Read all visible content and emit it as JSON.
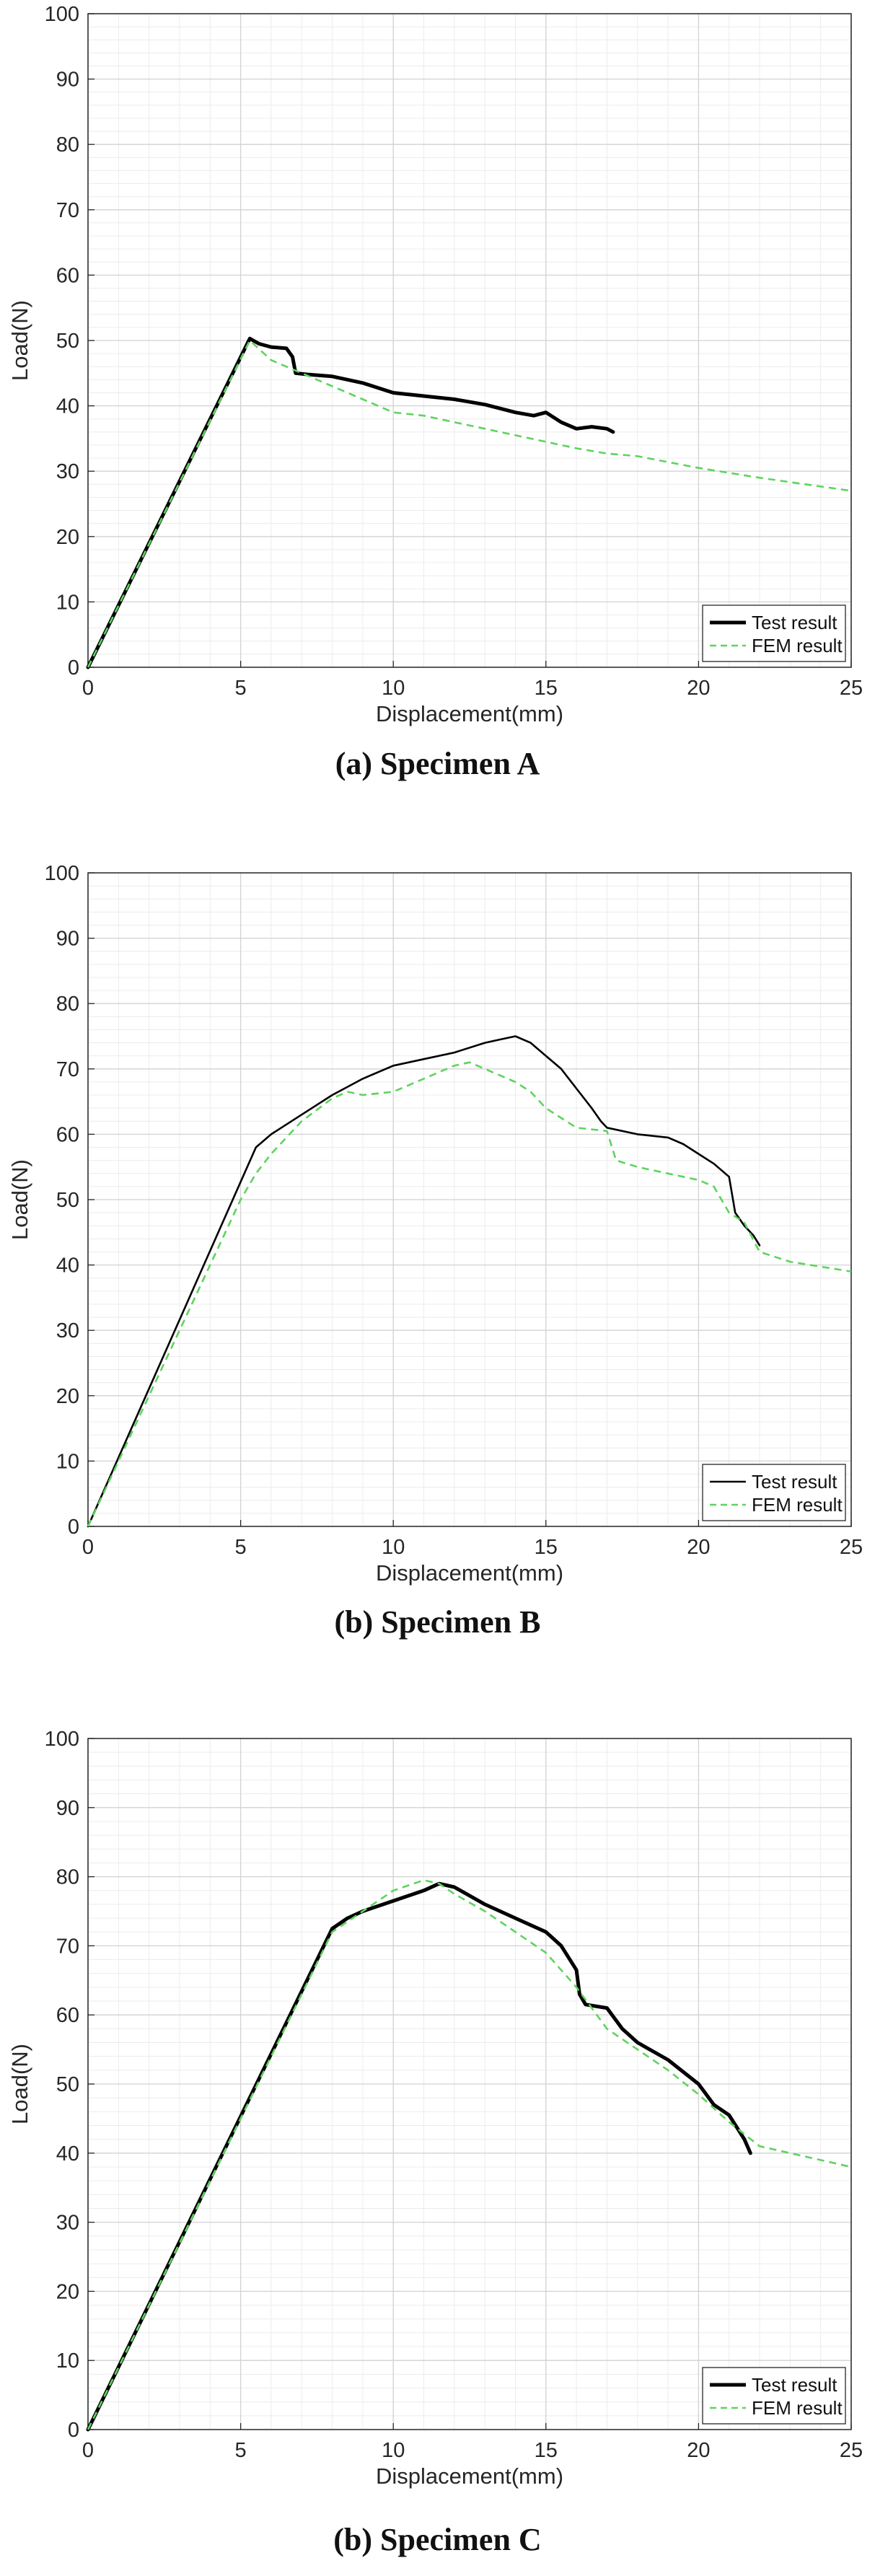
{
  "chart_data": [
    {
      "type": "line",
      "caption": "(a) Specimen A",
      "xlabel": "Displacement(mm)",
      "ylabel": "Load(N)",
      "xlim": [
        0,
        25
      ],
      "ylim": [
        0,
        100
      ],
      "xticks": [
        0,
        5,
        10,
        15,
        20,
        25
      ],
      "yticks": [
        0,
        10,
        20,
        30,
        40,
        50,
        60,
        70,
        80,
        90,
        100
      ],
      "grid": "major and minor",
      "legend_position": "bottom-right",
      "series": [
        {
          "name": "Test result",
          "color": "#000000",
          "style": "solid",
          "width": "thick",
          "x": [
            0,
            5.3,
            5.6,
            6.0,
            6.5,
            6.7,
            6.8,
            7.2,
            8.0,
            9.0,
            10.0,
            11.0,
            12.0,
            13.0,
            14.0,
            14.6,
            15.0,
            15.5,
            16.0,
            16.5,
            17.0,
            17.2
          ],
          "y": [
            0,
            50.3,
            49.5,
            49.0,
            48.8,
            47.5,
            45.0,
            44.8,
            44.5,
            43.5,
            42.0,
            41.5,
            41.0,
            40.2,
            39.0,
            38.5,
            39.0,
            37.5,
            36.5,
            36.8,
            36.5,
            36.0
          ]
        },
        {
          "name": "FEM result",
          "color": "#5fd35f",
          "style": "dashed",
          "width": "normal",
          "x": [
            0,
            5.3,
            6.0,
            7.0,
            8.0,
            9.0,
            10.0,
            11.0,
            12.0,
            13.0,
            14.0,
            15.0,
            16.0,
            17.0,
            18.0,
            20.0,
            22.0,
            25.0
          ],
          "y": [
            0,
            50.0,
            47.0,
            45.0,
            43.0,
            41.0,
            39.0,
            38.5,
            37.5,
            36.5,
            35.5,
            34.5,
            33.5,
            32.7,
            32.3,
            30.5,
            29.0,
            27.0
          ]
        }
      ]
    },
    {
      "type": "line",
      "caption": "(b) Specimen B",
      "xlabel": "Displacement(mm)",
      "ylabel": "Load(N)",
      "xlim": [
        0,
        25
      ],
      "ylim": [
        0,
        100
      ],
      "xticks": [
        0,
        5,
        10,
        15,
        20,
        25
      ],
      "yticks": [
        0,
        10,
        20,
        30,
        40,
        50,
        60,
        70,
        80,
        90,
        100
      ],
      "grid": "major and minor",
      "legend_position": "bottom-right",
      "series": [
        {
          "name": "Test result",
          "color": "#000000",
          "style": "solid",
          "width": "normal",
          "x": [
            0,
            5.5,
            6.0,
            7.0,
            8.0,
            9.0,
            10.0,
            11.0,
            12.0,
            13.0,
            13.5,
            14.0,
            14.5,
            15.0,
            15.5,
            16.0,
            16.5,
            16.8,
            17.0,
            18.0,
            19.0,
            19.5,
            20.0,
            20.5,
            21.0,
            21.2,
            21.5,
            21.8,
            22.0
          ],
          "y": [
            0,
            58.0,
            60.0,
            63.0,
            66.0,
            68.5,
            70.5,
            71.5,
            72.5,
            74.0,
            74.5,
            75.0,
            74.0,
            72.0,
            70.0,
            67.0,
            64.0,
            62.0,
            61.0,
            60.0,
            59.5,
            58.5,
            57.0,
            55.5,
            53.5,
            48.0,
            46.0,
            44.5,
            43.0
          ]
        },
        {
          "name": "FEM result",
          "color": "#5fd35f",
          "style": "dashed",
          "width": "normal",
          "x": [
            0,
            5.0,
            5.5,
            6.0,
            7.0,
            8.0,
            8.5,
            9.0,
            10.0,
            11.0,
            12.0,
            12.5,
            13.0,
            14.0,
            14.5,
            15.0,
            16.0,
            17.0,
            17.3,
            18.0,
            19.0,
            20.0,
            20.5,
            21.0,
            21.5,
            22.0,
            23.0,
            25.0
          ],
          "y": [
            0,
            50.0,
            54.0,
            57.0,
            62.0,
            65.5,
            66.5,
            66.0,
            66.5,
            68.5,
            70.5,
            71.0,
            70.0,
            68.0,
            66.5,
            64.0,
            61.0,
            60.5,
            56.0,
            55.0,
            54.0,
            53.0,
            52.0,
            48.0,
            46.5,
            42.0,
            40.5,
            39.0
          ]
        }
      ]
    },
    {
      "type": "line",
      "caption": "(b) Specimen C",
      "xlabel": "Displacement(mm)",
      "ylabel": "Load(N)",
      "xlim": [
        0,
        25
      ],
      "ylim": [
        0,
        100
      ],
      "xticks": [
        0,
        5,
        10,
        15,
        20,
        25
      ],
      "yticks": [
        0,
        10,
        20,
        30,
        40,
        50,
        60,
        70,
        80,
        90,
        100
      ],
      "grid": "major and minor",
      "legend_position": "bottom-right",
      "series": [
        {
          "name": "Test result",
          "color": "#000000",
          "style": "solid",
          "width": "thick",
          "x": [
            0,
            8.0,
            8.5,
            9.0,
            10.0,
            11.0,
            11.5,
            12.0,
            13.0,
            14.0,
            15.0,
            15.5,
            16.0,
            16.1,
            16.3,
            17.0,
            17.5,
            18.0,
            19.0,
            20.0,
            20.5,
            21.0,
            21.5,
            21.7
          ],
          "y": [
            0,
            72.5,
            74.0,
            75.0,
            76.5,
            78.0,
            79.0,
            78.5,
            76.0,
            74.0,
            72.0,
            70.0,
            66.5,
            63.0,
            61.5,
            61.0,
            58.0,
            56.0,
            53.5,
            50.0,
            47.0,
            45.5,
            42.0,
            40.0
          ]
        },
        {
          "name": "FEM result",
          "color": "#5fd35f",
          "style": "dashed",
          "width": "normal",
          "x": [
            0,
            8.0,
            9.0,
            10.0,
            11.0,
            11.5,
            12.0,
            13.0,
            14.0,
            15.0,
            16.0,
            16.5,
            17.0,
            18.0,
            19.0,
            20.0,
            21.0,
            22.0,
            23.0,
            25.0
          ],
          "y": [
            0,
            72.0,
            75.0,
            78.0,
            79.5,
            79.0,
            77.5,
            75.0,
            72.0,
            69.0,
            64.0,
            61.0,
            58.0,
            55.0,
            52.0,
            48.5,
            44.5,
            41.0,
            40.0,
            38.0
          ]
        }
      ]
    }
  ]
}
